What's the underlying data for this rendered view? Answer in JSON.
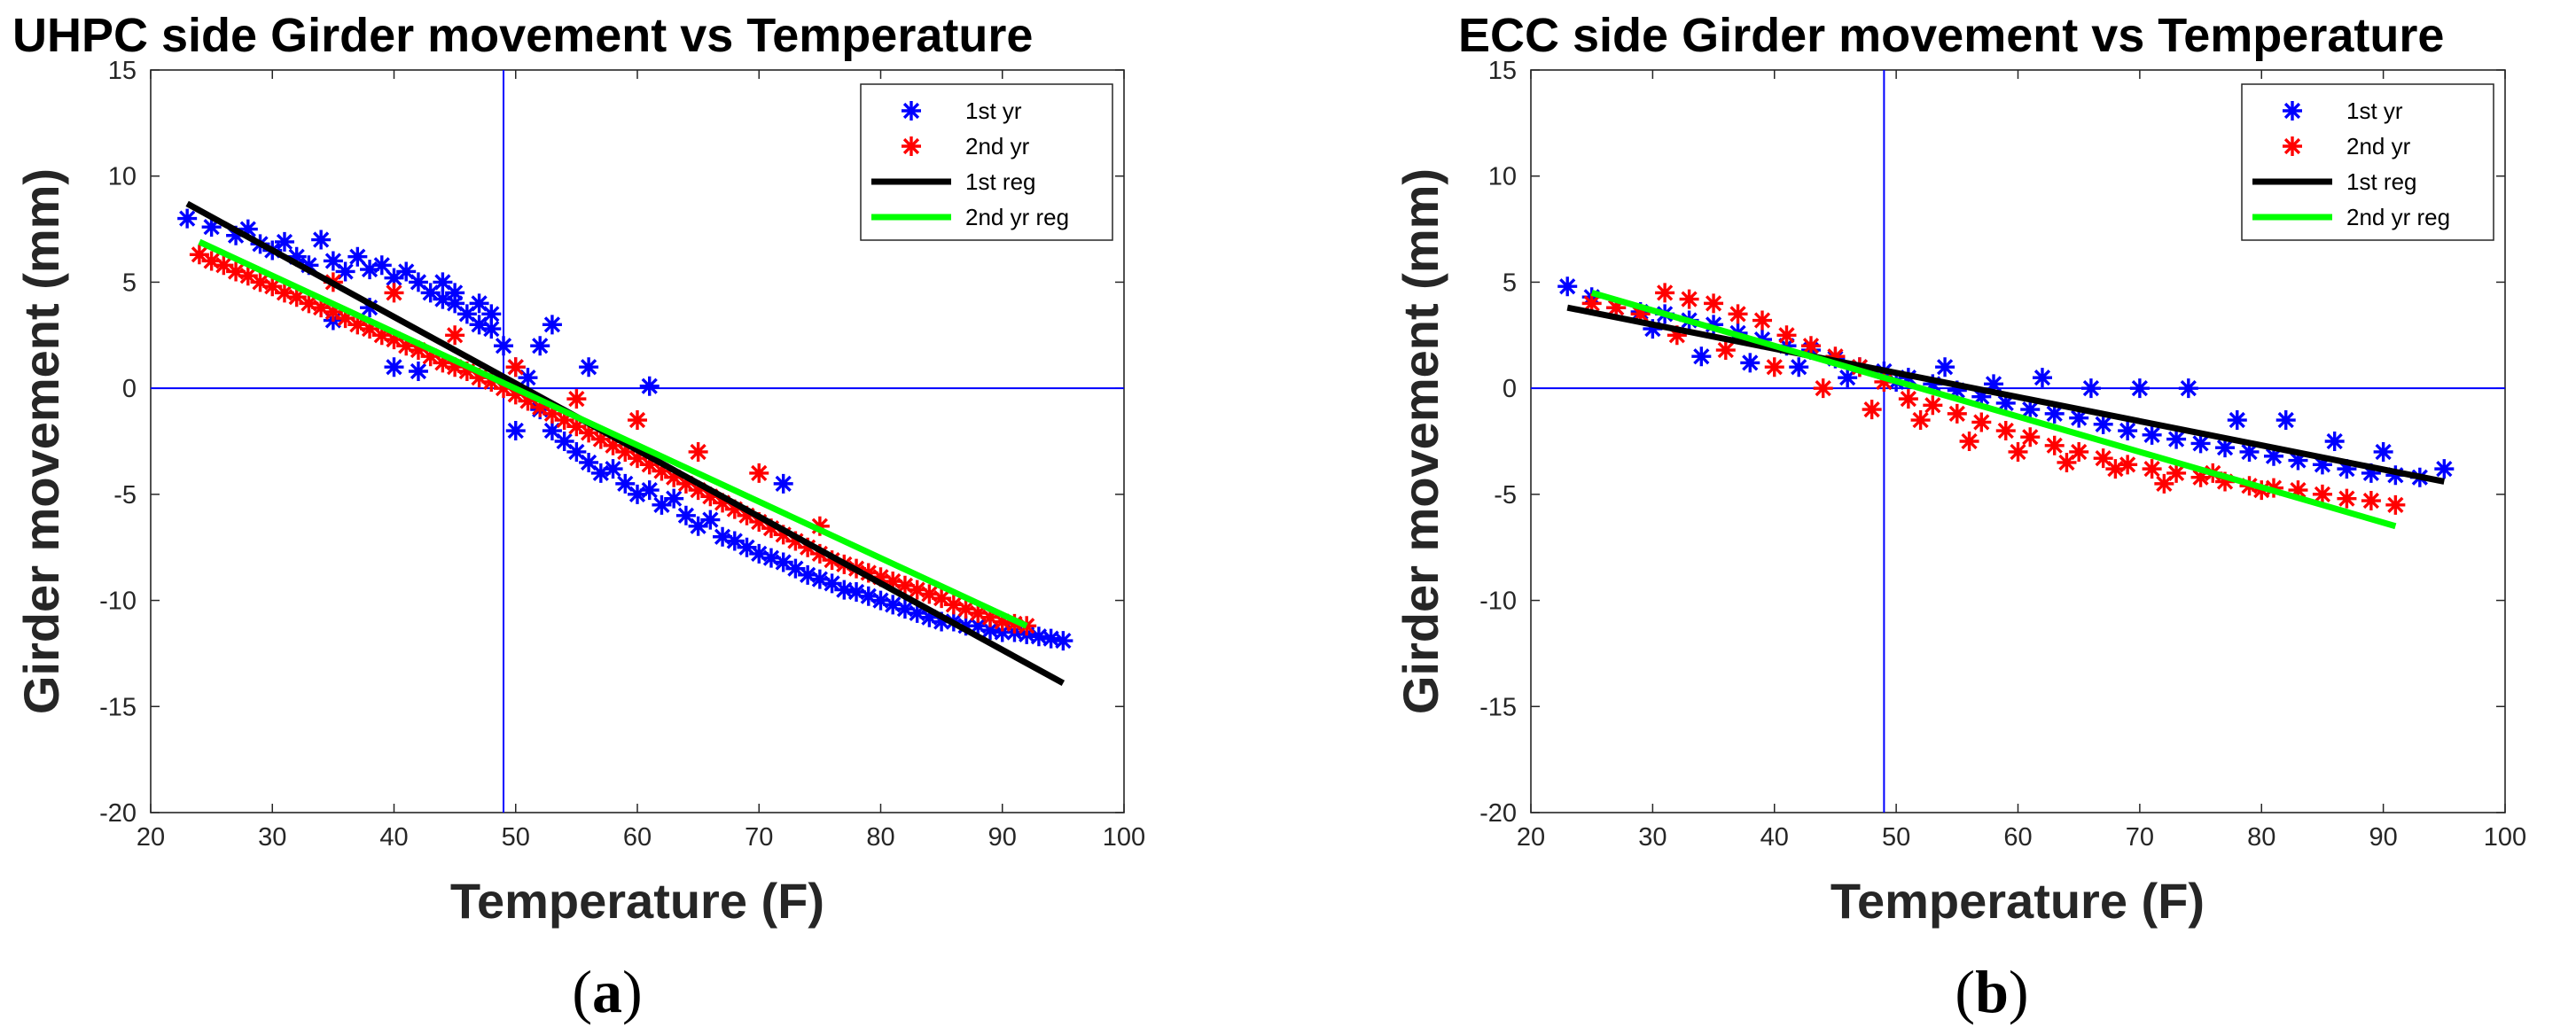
{
  "chart_data": [
    {
      "type": "scatter",
      "title": "UHPC side Girder movement vs Temperature",
      "xlabel": "Temperature (F)",
      "ylabel": "Girder movement (mm)",
      "xlim": [
        20,
        100
      ],
      "ylim": [
        -20,
        15
      ],
      "xticks": [
        20,
        30,
        40,
        50,
        60,
        70,
        80,
        90,
        100
      ],
      "yticks": [
        -20,
        -15,
        -10,
        -5,
        0,
        5,
        10,
        15
      ],
      "reference_lines": {
        "x": 49,
        "y": 0
      },
      "legend_position": "top-right",
      "panel_label": "(a)",
      "series": [
        {
          "name": "1st yr",
          "kind": "scatter",
          "marker": "*",
          "color": "#0000ff",
          "x": [
            23,
            25,
            27,
            28,
            29,
            30,
            31,
            32,
            33,
            34,
            35,
            36,
            37,
            38,
            39,
            40,
            41,
            42,
            43,
            44,
            45,
            46,
            47,
            48,
            49,
            50,
            51,
            52,
            53,
            54,
            55,
            56,
            57,
            58,
            59,
            60,
            61,
            62,
            63,
            64,
            65,
            66,
            67,
            68,
            69,
            70,
            71,
            72,
            73,
            74,
            75,
            76,
            77,
            78,
            79,
            80,
            81,
            82,
            83,
            84,
            85,
            86,
            87,
            88,
            89,
            90,
            91,
            92,
            93,
            94,
            95,
            40,
            42,
            45,
            48,
            50,
            53,
            35,
            38,
            44,
            47,
            52,
            56,
            61,
            72
          ],
          "y": [
            8,
            7.6,
            7.2,
            7.5,
            6.8,
            6.5,
            6.9,
            6.2,
            5.8,
            7,
            6,
            5.5,
            6.2,
            5.6,
            5.8,
            5.2,
            5.5,
            5.0,
            4.5,
            4.2,
            4.0,
            3.5,
            3.0,
            2.8,
            2.0,
            1.0,
            0.5,
            -1.0,
            -2.0,
            -2.5,
            -3.0,
            -3.5,
            -4.0,
            -3.8,
            -4.5,
            -5.0,
            -4.8,
            -5.5,
            -5.2,
            -6.0,
            -6.5,
            -6.2,
            -7.0,
            -7.2,
            -7.5,
            -7.8,
            -8.0,
            -8.2,
            -8.5,
            -8.8,
            -9.0,
            -9.2,
            -9.5,
            -9.6,
            -9.8,
            -10.0,
            -10.2,
            -10.4,
            -10.6,
            -10.8,
            -11.0,
            -11.0,
            -11.2,
            -11.2,
            -11.4,
            -11.5,
            -11.5,
            -11.6,
            -11.7,
            -11.8,
            -11.9,
            1.0,
            0.8,
            4.5,
            3.5,
            -2.0,
            3.0,
            3.2,
            3.8,
            5.0,
            4.0,
            2.0,
            1.0,
            0.1,
            -4.5
          ]
        },
        {
          "name": "2nd yr",
          "kind": "scatter",
          "marker": "*",
          "color": "#ff0000",
          "x": [
            24,
            25,
            26,
            27,
            28,
            29,
            30,
            31,
            32,
            33,
            34,
            35,
            36,
            37,
            38,
            39,
            40,
            41,
            42,
            43,
            44,
            45,
            46,
            47,
            48,
            49,
            50,
            51,
            52,
            53,
            54,
            55,
            56,
            57,
            58,
            59,
            60,
            61,
            62,
            63,
            64,
            65,
            66,
            67,
            68,
            69,
            70,
            71,
            72,
            73,
            74,
            75,
            76,
            77,
            78,
            79,
            80,
            81,
            82,
            83,
            84,
            85,
            86,
            87,
            88,
            89,
            90,
            91,
            92,
            35,
            40,
            45,
            50,
            55,
            60,
            65,
            70,
            75
          ],
          "y": [
            6.3,
            6.0,
            5.8,
            5.5,
            5.3,
            5.0,
            4.8,
            4.5,
            4.3,
            4.0,
            3.8,
            3.6,
            3.3,
            3.0,
            2.8,
            2.5,
            2.3,
            2.0,
            1.8,
            1.5,
            1.2,
            1.0,
            0.8,
            0.5,
            0.3,
            0.0,
            -0.3,
            -0.6,
            -0.9,
            -1.2,
            -1.5,
            -1.8,
            -2.1,
            -2.4,
            -2.7,
            -3.0,
            -3.3,
            -3.6,
            -3.9,
            -4.2,
            -4.5,
            -4.8,
            -5.1,
            -5.4,
            -5.7,
            -6.0,
            -6.3,
            -6.6,
            -6.9,
            -7.2,
            -7.5,
            -7.8,
            -8.1,
            -8.3,
            -8.5,
            -8.7,
            -8.9,
            -9.1,
            -9.3,
            -9.5,
            -9.7,
            -9.9,
            -10.2,
            -10.4,
            -10.6,
            -10.8,
            -11.0,
            -11.1,
            -11.2,
            5.0,
            4.5,
            2.5,
            1.0,
            -0.5,
            -1.5,
            -3.0,
            -4.0,
            -6.5
          ]
        },
        {
          "name": "1st reg",
          "kind": "line",
          "color": "#000000",
          "x": [
            23,
            95
          ],
          "y": [
            8.7,
            -13.9
          ]
        },
        {
          "name": "2nd yr reg",
          "kind": "line",
          "color": "#00ff00",
          "x": [
            24,
            92
          ],
          "y": [
            6.9,
            -11.2
          ]
        }
      ]
    },
    {
      "type": "scatter",
      "title": "ECC side Girder movement vs Temperature",
      "xlabel": "Temperature (F)",
      "ylabel": "Girder movement (mm)",
      "xlim": [
        20,
        100
      ],
      "ylim": [
        -20,
        15
      ],
      "xticks": [
        20,
        30,
        40,
        50,
        60,
        70,
        80,
        90,
        100
      ],
      "yticks": [
        -20,
        -15,
        -10,
        -5,
        0,
        5,
        10,
        15
      ],
      "reference_lines": {
        "x": 49,
        "y": 0
      },
      "legend_position": "top-right",
      "panel_label": "(b)",
      "series": [
        {
          "name": "1st yr",
          "kind": "scatter",
          "marker": "*",
          "color": "#0000ff",
          "x": [
            23,
            25,
            27,
            29,
            31,
            33,
            35,
            37,
            39,
            41,
            43,
            45,
            47,
            49,
            51,
            53,
            55,
            57,
            59,
            61,
            63,
            65,
            67,
            69,
            71,
            73,
            75,
            77,
            79,
            81,
            83,
            85,
            87,
            89,
            91,
            93,
            95,
            30,
            34,
            38,
            42,
            46,
            50,
            54,
            58,
            62,
            66,
            70,
            74,
            78,
            82,
            86,
            90
          ],
          "y": [
            4.8,
            4.3,
            3.8,
            3.6,
            3.5,
            3.2,
            3.0,
            2.6,
            2.3,
            2.0,
            1.8,
            1.4,
            1.0,
            0.8,
            0.5,
            0.2,
            -0.1,
            -0.4,
            -0.7,
            -1.0,
            -1.2,
            -1.4,
            -1.7,
            -2.0,
            -2.2,
            -2.4,
            -2.6,
            -2.8,
            -3.0,
            -3.2,
            -3.4,
            -3.6,
            -3.8,
            -4.0,
            -4.1,
            -4.2,
            -3.8,
            2.8,
            1.5,
            1.2,
            1.0,
            0.5,
            0.3,
            1.0,
            0.2,
            0.5,
            0.0,
            0.0,
            0.0,
            -1.5,
            -1.5,
            -2.5,
            -3.0
          ]
        },
        {
          "name": "2nd yr",
          "kind": "scatter",
          "marker": "*",
          "color": "#ff0000",
          "x": [
            25,
            27,
            29,
            31,
            33,
            35,
            37,
            39,
            41,
            43,
            45,
            47,
            49,
            51,
            53,
            55,
            57,
            59,
            61,
            63,
            65,
            67,
            69,
            71,
            73,
            75,
            77,
            79,
            81,
            83,
            85,
            87,
            89,
            91,
            32,
            36,
            40,
            44,
            48,
            52,
            56,
            60,
            64,
            68,
            72,
            76,
            80
          ],
          "y": [
            4.0,
            3.8,
            3.5,
            4.5,
            4.2,
            4.0,
            3.5,
            3.2,
            2.5,
            2.0,
            1.5,
            1.0,
            0.3,
            -0.5,
            -0.8,
            -1.2,
            -1.6,
            -2.0,
            -2.3,
            -2.7,
            -3.0,
            -3.3,
            -3.6,
            -3.8,
            -4.0,
            -4.2,
            -4.4,
            -4.6,
            -4.7,
            -4.8,
            -5.0,
            -5.2,
            -5.3,
            -5.5,
            2.5,
            1.8,
            1.0,
            0.0,
            -1.0,
            -1.5,
            -2.5,
            -3.0,
            -3.5,
            -3.8,
            -4.5,
            -4.0,
            -4.8
          ]
        },
        {
          "name": "1st reg",
          "kind": "line",
          "color": "#000000",
          "x": [
            23,
            95
          ],
          "y": [
            3.8,
            -4.4
          ]
        },
        {
          "name": "2nd yr reg",
          "kind": "line",
          "color": "#00ff00",
          "x": [
            25,
            91
          ],
          "y": [
            4.5,
            -6.5
          ]
        }
      ]
    }
  ]
}
